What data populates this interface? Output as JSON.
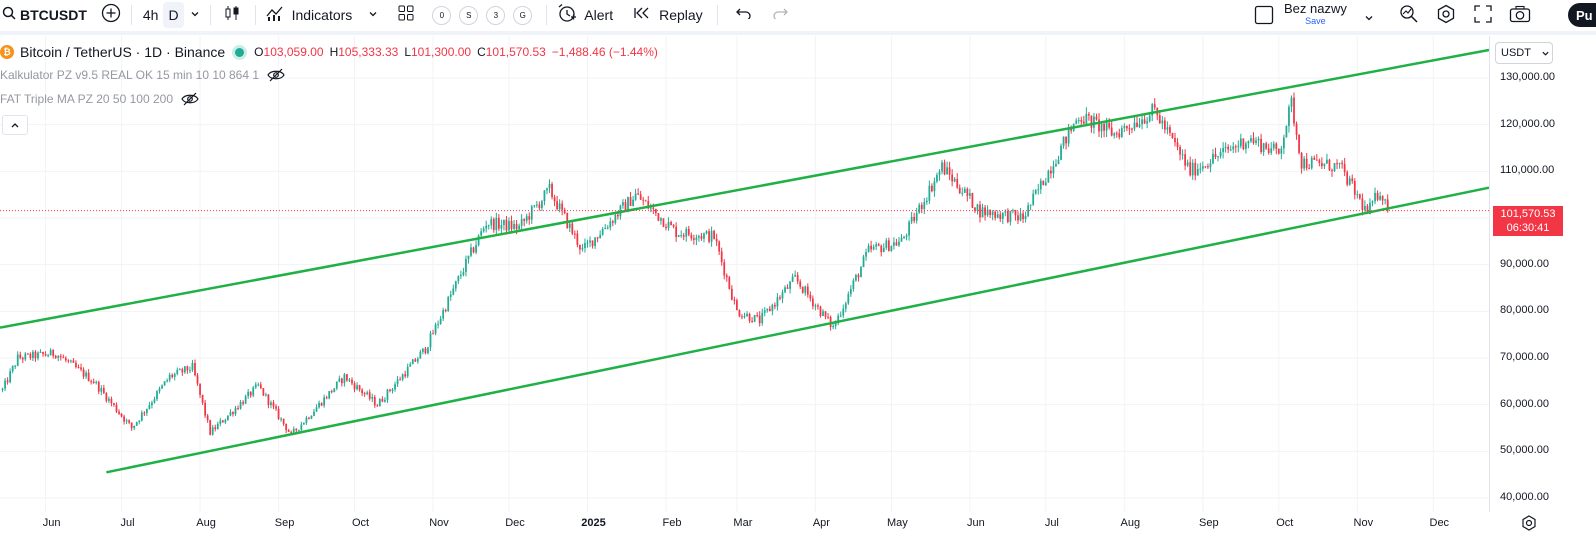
{
  "toolbar": {
    "symbol": "BTCUSDT",
    "timeframes": [
      "4h",
      "D"
    ],
    "active_timeframe": "D",
    "indicators_label": "Indicators",
    "alert_label": "Alert",
    "replay_label": "Replay",
    "layout_name": "Bez nazwy",
    "layout_save": "Save",
    "publish_label": "Pu",
    "count_badges": [
      "0",
      "S",
      "3",
      "G"
    ]
  },
  "legend": {
    "title": "Bitcoin / TetherUS · 1D · Binance",
    "open_key": "O",
    "open": "103,059.00",
    "high_key": "H",
    "high": "105,333.33",
    "low_key": "L",
    "low": "101,300.00",
    "close_key": "C",
    "close": "101,570.53",
    "change": "−1,488.46 (−1.44%)",
    "indicators": [
      "Kalkulator PZ v9.5 REAL OK 15 min 10 10 864 1",
      "FAT Triple MA PZ 20 50 100 200"
    ]
  },
  "price_axis": {
    "currency": "USDT",
    "ticks": [
      "130,000.00",
      "120,000.00",
      "110,000.00",
      "90,000.00",
      "80,000.00",
      "70,000.00",
      "60,000.00",
      "50,000.00",
      "40,000.00"
    ],
    "last_price": "101,570.53",
    "countdown": "06:30:41"
  },
  "time_axis": {
    "labels": [
      "Jun",
      "Jul",
      "Aug",
      "Sep",
      "Oct",
      "Nov",
      "Dec",
      "2025",
      "Feb",
      "Mar",
      "Apr",
      "May",
      "Jun",
      "Jul",
      "Aug",
      "Sep",
      "Oct",
      "Nov",
      "Dec"
    ]
  },
  "colors": {
    "up": "#22ab94",
    "down": "#f23645",
    "channel": "#1fb046",
    "grid": "#f2f3f5"
  },
  "chart_data": {
    "type": "candlestick",
    "symbol": "BTCUSDT",
    "interval": "1D",
    "x_range": [
      "2024-05-14",
      "2025-12-23"
    ],
    "ylim": [
      37000,
      139000
    ],
    "y_scale": "linear",
    "grid": true,
    "last_close": 101570.53,
    "channel_lines": [
      {
        "from": [
          "2024-05-14",
          76500
        ],
        "to": [
          "2025-12-23",
          136000
        ]
      },
      {
        "from": [
          "2024-06-25",
          45500
        ],
        "to": [
          "2025-12-23",
          106500
        ]
      }
    ],
    "close_path": [
      [
        "2024-05-14",
        62000
      ],
      [
        "2024-05-21",
        70000
      ],
      [
        "2024-06-05",
        71000
      ],
      [
        "2024-06-20",
        65000
      ],
      [
        "2024-07-05",
        55000
      ],
      [
        "2024-07-20",
        66000
      ],
      [
        "2024-07-29",
        68000
      ],
      [
        "2024-08-05",
        54000
      ],
      [
        "2024-08-24",
        64000
      ],
      [
        "2024-09-06",
        53500
      ],
      [
        "2024-09-27",
        66000
      ],
      [
        "2024-10-10",
        60000
      ],
      [
        "2024-10-29",
        72000
      ],
      [
        "2024-11-12",
        88000
      ],
      [
        "2024-11-22",
        99000
      ],
      [
        "2024-12-05",
        98000
      ],
      [
        "2024-12-17",
        106000
      ],
      [
        "2024-12-30",
        93000
      ],
      [
        "2025-01-20",
        105000
      ],
      [
        "2025-02-05",
        97000
      ],
      [
        "2025-02-20",
        96000
      ],
      [
        "2025-03-01",
        80000
      ],
      [
        "2025-03-10",
        78000
      ],
      [
        "2025-03-24",
        87000
      ],
      [
        "2025-04-08",
        76500
      ],
      [
        "2025-04-22",
        93000
      ],
      [
        "2025-05-05",
        95000
      ],
      [
        "2025-05-21",
        111000
      ],
      [
        "2025-06-05",
        101500
      ],
      [
        "2025-06-22",
        100000
      ],
      [
        "2025-07-14",
        122000
      ],
      [
        "2025-07-28",
        118000
      ],
      [
        "2025-08-13",
        123000
      ],
      [
        "2025-08-27",
        110000
      ],
      [
        "2025-09-19",
        117000
      ],
      [
        "2025-10-01",
        114000
      ],
      [
        "2025-10-06",
        124500
      ],
      [
        "2025-10-10",
        112000
      ],
      [
        "2025-10-25",
        111000
      ],
      [
        "2025-11-05",
        101000
      ],
      [
        "2025-11-10",
        106000
      ],
      [
        "2025-11-13",
        101570.53
      ]
    ]
  }
}
